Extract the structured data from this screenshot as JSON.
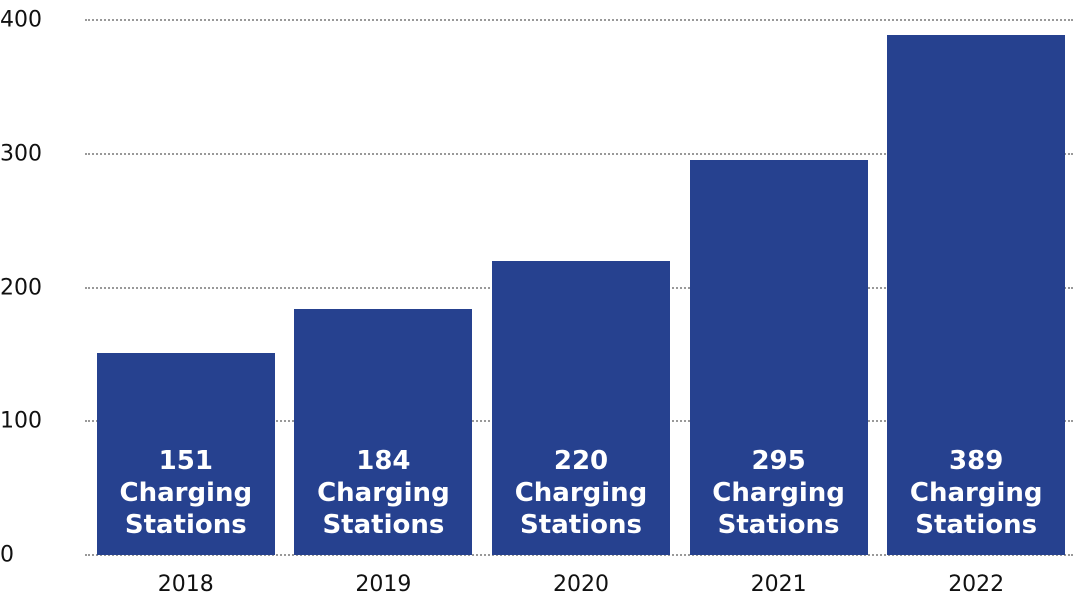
{
  "chart_data": {
    "type": "bar",
    "categories": [
      "2018",
      "2019",
      "2020",
      "2021",
      "2022"
    ],
    "values": [
      151,
      184,
      220,
      295,
      389
    ],
    "value_labels": [
      "151 Charging Stations",
      "184 Charging Stations",
      "220 Charging Stations",
      "295 Charging Stations",
      "389 Charging Stations"
    ],
    "color": "#26418f",
    "ylim": [
      0,
      400
    ],
    "yticks": [
      0,
      100,
      200,
      300,
      400
    ],
    "grid": true
  }
}
